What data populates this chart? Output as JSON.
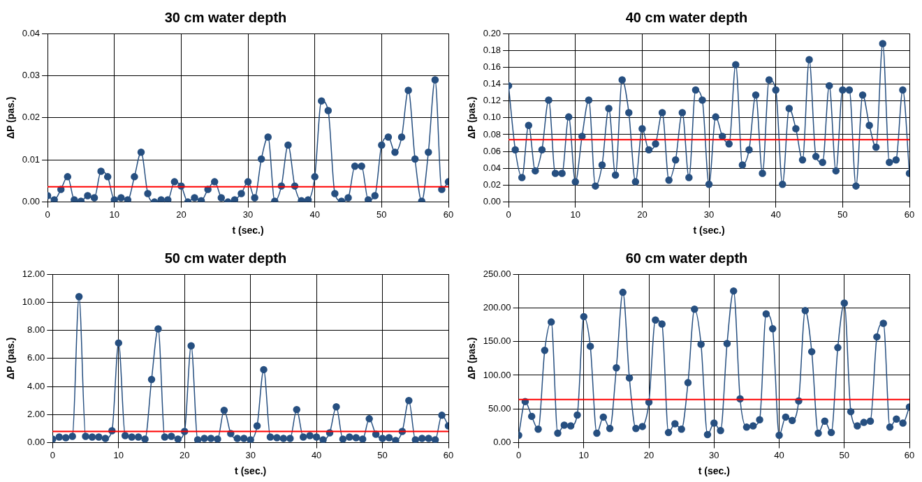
{
  "chart_data": [
    {
      "type": "line",
      "title": "30 cm water depth",
      "xlabel": "t (sec.)",
      "ylabel": "ΔP (pas.)",
      "x": [
        0,
        1,
        2,
        3,
        4,
        5,
        6,
        7,
        8,
        9,
        10,
        11,
        12,
        13,
        14,
        15,
        16,
        17,
        18,
        19,
        20,
        21,
        22,
        23,
        24,
        25,
        26,
        27,
        28,
        29,
        30,
        31,
        32,
        33,
        34,
        35,
        36,
        37,
        38,
        39,
        40,
        41,
        42,
        43,
        44,
        45,
        46,
        47,
        48,
        49,
        50,
        51,
        52,
        53,
        54,
        55,
        56,
        57,
        58,
        59,
        60
      ],
      "series": [
        {
          "color": "#264f80",
          "values": [
            0.0015,
            0.0005,
            0.003,
            0.006,
            0.0005,
            0.0002,
            0.0015,
            0.001,
            0.0073,
            0.006,
            0.0005,
            0.001,
            0.0005,
            0.006,
            0.0118,
            0.002,
            0.0,
            0.0005,
            0.0005,
            0.0048,
            0.0038,
            0.0,
            0.001,
            0.0003,
            0.003,
            0.0048,
            0.001,
            0.0,
            0.0005,
            0.002,
            0.0048,
            0.001,
            0.0102,
            0.0154,
            0.0002,
            0.0038,
            0.0135,
            0.0038,
            0.0003,
            0.0005,
            0.006,
            0.024,
            0.0217,
            0.002,
            0.0002,
            0.001,
            0.0085,
            0.0085,
            0.0005,
            0.0015,
            0.0135,
            0.0154,
            0.0118,
            0.0154,
            0.0265,
            0.0102,
            0.0002,
            0.0118,
            0.029,
            0.003,
            0.0048
          ]
        }
      ],
      "xlim": [
        0,
        60
      ],
      "xticks": [
        0,
        10,
        20,
        30,
        40,
        50,
        60
      ],
      "ylim": [
        0,
        0.04
      ],
      "yticks": [
        {
          "value": 0,
          "label": "0.00"
        },
        0.01,
        0.02,
        0.03,
        0.04
      ],
      "ref_lines": [
        {
          "axis": "y",
          "value": 0.0036,
          "color": "#ff0000"
        }
      ],
      "grid": true,
      "legend": false,
      "marker": "circle",
      "line_style": "solid"
    },
    {
      "type": "line",
      "title": "40 cm water depth",
      "xlabel": "t (sec.)",
      "ylabel": "ΔP (pas.)",
      "x": [
        0,
        1,
        2,
        3,
        4,
        5,
        6,
        7,
        8,
        9,
        10,
        11,
        12,
        13,
        14,
        15,
        16,
        17,
        18,
        19,
        20,
        21,
        22,
        23,
        24,
        25,
        26,
        27,
        28,
        29,
        30,
        31,
        32,
        33,
        34,
        35,
        36,
        37,
        38,
        39,
        40,
        41,
        42,
        43,
        44,
        45,
        46,
        47,
        48,
        49,
        50,
        51,
        52,
        53,
        54,
        55,
        56,
        57,
        58,
        59,
        60
      ],
      "series": [
        {
          "color": "#264f80",
          "values": [
            0.138,
            0.062,
            0.029,
            0.091,
            0.037,
            0.062,
            0.121,
            0.034,
            0.034,
            0.101,
            0.024,
            0.078,
            0.121,
            0.019,
            0.044,
            0.111,
            0.032,
            0.145,
            0.106,
            0.024,
            0.087,
            0.062,
            0.069,
            0.106,
            0.026,
            0.05,
            0.106,
            0.029,
            0.133,
            0.121,
            0.021,
            0.101,
            0.078,
            0.069,
            0.163,
            0.044,
            0.062,
            0.127,
            0.034,
            0.145,
            0.133,
            0.021,
            0.111,
            0.087,
            0.05,
            0.169,
            0.054,
            0.047,
            0.138,
            0.037,
            0.133,
            0.133,
            0.019,
            0.127,
            0.091,
            0.065,
            0.188,
            0.047,
            0.05,
            0.133,
            0.034
          ]
        }
      ],
      "xlim": [
        0,
        60
      ],
      "xticks": [
        0,
        10,
        20,
        30,
        40,
        50,
        60
      ],
      "ylim": [
        0,
        0.2
      ],
      "yticks": [
        {
          "value": 0,
          "label": "0.00"
        },
        {
          "value": 0.02,
          "label": "0.02"
        },
        {
          "value": 0.04,
          "label": "0.04"
        },
        {
          "value": 0.06,
          "label": "0.06"
        },
        {
          "value": 0.08,
          "label": "0.08"
        },
        {
          "value": 0.1,
          "label": "0.10"
        },
        {
          "value": 0.12,
          "label": "0.12"
        },
        {
          "value": 0.14,
          "label": "0.14"
        },
        {
          "value": 0.16,
          "label": "0.16"
        },
        {
          "value": 0.18,
          "label": "0.18"
        },
        {
          "value": 0.2,
          "label": "0.20"
        }
      ],
      "ref_lines": [
        {
          "axis": "y",
          "value": 0.074,
          "color": "#ff0000"
        }
      ],
      "grid": true,
      "legend": false,
      "marker": "circle",
      "line_style": "solid"
    },
    {
      "type": "line",
      "title": "50 cm water depth",
      "xlabel": "t (sec.)",
      "ylabel": "ΔP (pas.)",
      "x": [
        0,
        1,
        2,
        3,
        4,
        5,
        6,
        7,
        8,
        9,
        10,
        11,
        12,
        13,
        14,
        15,
        16,
        17,
        18,
        19,
        20,
        21,
        22,
        23,
        24,
        25,
        26,
        27,
        28,
        29,
        30,
        31,
        32,
        33,
        34,
        35,
        36,
        37,
        38,
        39,
        40,
        41,
        42,
        43,
        44,
        45,
        46,
        47,
        48,
        49,
        50,
        51,
        52,
        53,
        54,
        55,
        56,
        57,
        58,
        59,
        60
      ],
      "series": [
        {
          "color": "#264f80",
          "values": [
            0.25,
            0.4,
            0.35,
            0.45,
            10.4,
            0.45,
            0.4,
            0.4,
            0.3,
            0.85,
            7.1,
            0.5,
            0.4,
            0.4,
            0.25,
            4.5,
            8.1,
            0.4,
            0.45,
            0.25,
            0.8,
            6.9,
            0.2,
            0.3,
            0.3,
            0.25,
            2.3,
            0.65,
            0.3,
            0.3,
            0.2,
            1.2,
            5.2,
            0.4,
            0.35,
            0.3,
            0.3,
            2.35,
            0.4,
            0.5,
            0.4,
            0.2,
            0.7,
            2.55,
            0.25,
            0.4,
            0.35,
            0.25,
            1.7,
            0.6,
            0.3,
            0.35,
            0.15,
            0.8,
            3.0,
            0.2,
            0.3,
            0.3,
            0.2,
            1.95,
            1.2
          ]
        }
      ],
      "xlim": [
        0,
        60
      ],
      "xticks": [
        0,
        10,
        20,
        30,
        40,
        50,
        60
      ],
      "ylim": [
        0,
        12
      ],
      "yticks": [
        {
          "value": 0,
          "label": "0.00"
        },
        {
          "value": 2,
          "label": "2.00"
        },
        {
          "value": 4,
          "label": "4.00"
        },
        {
          "value": 6,
          "label": "6.00"
        },
        {
          "value": 8,
          "label": "8.00"
        },
        {
          "value": 10,
          "label": "10.00"
        },
        {
          "value": 12,
          "label": "12.00"
        }
      ],
      "ref_lines": [
        {
          "axis": "y",
          "value": 0.8,
          "color": "#ff0000"
        }
      ],
      "grid": true,
      "legend": false,
      "marker": "circle",
      "line_style": "solid"
    },
    {
      "type": "line",
      "title": "60 cm water depth",
      "xlabel": "t (sec.)",
      "ylabel": "ΔP (pas.)",
      "x": [
        0,
        1,
        2,
        3,
        4,
        5,
        6,
        7,
        8,
        9,
        10,
        11,
        12,
        13,
        14,
        15,
        16,
        17,
        18,
        19,
        20,
        21,
        22,
        23,
        24,
        25,
        26,
        27,
        28,
        29,
        30,
        31,
        32,
        33,
        34,
        35,
        36,
        37,
        38,
        39,
        40,
        41,
        42,
        43,
        44,
        45,
        46,
        47,
        48,
        49,
        50,
        51,
        52,
        53,
        54,
        55,
        56,
        57,
        58,
        59,
        60
      ],
      "series": [
        {
          "color": "#264f80",
          "values": [
            11,
            61,
            39,
            20,
            137,
            179,
            14,
            26,
            25,
            41,
            187,
            143,
            14,
            38,
            21,
            111,
            223,
            96,
            21,
            24,
            60,
            182,
            176,
            15,
            28,
            20,
            89,
            198,
            146,
            12,
            29,
            18,
            147,
            225,
            65,
            23,
            25,
            34,
            191,
            169,
            11,
            38,
            33,
            62,
            196,
            135,
            14,
            32,
            15,
            141,
            207,
            46,
            25,
            30,
            32,
            157,
            177,
            23,
            35,
            29,
            53
          ]
        }
      ],
      "xlim": [
        0,
        60
      ],
      "xticks": [
        0,
        10,
        20,
        30,
        40,
        50,
        60
      ],
      "ylim": [
        0,
        250
      ],
      "yticks": [
        {
          "value": 0,
          "label": "0.00"
        },
        {
          "value": 50,
          "label": "50.00"
        },
        {
          "value": 100,
          "label": "100.00"
        },
        {
          "value": 150,
          "label": "150.00"
        },
        {
          "value": 200,
          "label": "200.00"
        },
        {
          "value": 250,
          "label": "250.00"
        }
      ],
      "ref_lines": [
        {
          "axis": "y",
          "value": 64,
          "color": "#ff0000"
        }
      ],
      "grid": true,
      "legend": false,
      "marker": "circle",
      "line_style": "solid"
    }
  ]
}
